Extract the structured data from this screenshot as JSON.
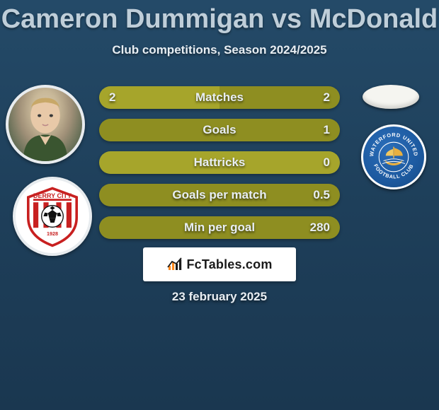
{
  "title": "Cameron Dummigan vs McDonald",
  "subtitle": "Club competitions, Season 2024/2025",
  "date": "23 february 2025",
  "fctables_label": "FcTables.com",
  "colors": {
    "olive_left": "#a6a52b",
    "olive_right": "#8e8e21",
    "blue": "#1e5fa8",
    "white": "#ffffff"
  },
  "left_club": "Derry City",
  "right_club": "Waterford United",
  "bars": [
    {
      "label": "Matches",
      "left": "2",
      "right": "2",
      "left_color": "#a6a52b",
      "right_color": "#8e8e21",
      "left_pct": 50,
      "right_pct": 50
    },
    {
      "label": "Goals",
      "left": "",
      "right": "1",
      "left_color": "#a6a52b",
      "right_color": "#8e8e21",
      "left_pct": 0,
      "right_pct": 100
    },
    {
      "label": "Hattricks",
      "left": "",
      "right": "0",
      "left_color": "#a6a52b",
      "right_color": "#a6a52b",
      "left_pct": 50,
      "right_pct": 50,
      "mono": true
    },
    {
      "label": "Goals per match",
      "left": "",
      "right": "0.5",
      "left_color": "#a6a52b",
      "right_color": "#8e8e21",
      "left_pct": 0,
      "right_pct": 100
    },
    {
      "label": "Min per goal",
      "left": "",
      "right": "280",
      "left_color": "#a6a52b",
      "right_color": "#8e8e21",
      "left_pct": 0,
      "right_pct": 100
    }
  ]
}
